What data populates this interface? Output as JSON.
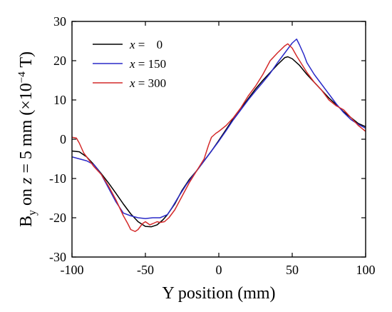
{
  "chart_data": {
    "type": "line",
    "title": "",
    "xlabel": "Y position (mm)",
    "ylabel": {
      "prefix": "B",
      "sub": "y",
      "mid": " on ",
      "var": "z",
      "rest": " = 5 mm (×10",
      "exp": "−4",
      "unit": " T)"
    },
    "xlim": [
      -100,
      100
    ],
    "ylim": [
      -30,
      30
    ],
    "xticks": [
      -100,
      -50,
      0,
      50,
      100
    ],
    "yticks": [
      -30,
      -20,
      -10,
      0,
      10,
      20,
      30
    ],
    "xtick_labels": [
      "-100",
      "-50",
      "0",
      "50",
      "100"
    ],
    "ytick_labels": [
      "-30",
      "-20",
      "-10",
      "0",
      "10",
      "20",
      "30"
    ],
    "grid": false,
    "legend_position": "top-left",
    "series": [
      {
        "name": "x = 0",
        "legend": {
          "var": "x",
          "eq": " = ",
          "val": "0"
        },
        "color": "#000000",
        "points": [
          [
            -100,
            -3
          ],
          [
            -95,
            -3.2
          ],
          [
            -90,
            -4.5
          ],
          [
            -85,
            -6.5
          ],
          [
            -80,
            -8.8
          ],
          [
            -75,
            -11.2
          ],
          [
            -70,
            -13.8
          ],
          [
            -65,
            -16.5
          ],
          [
            -60,
            -19.0
          ],
          [
            -55,
            -21.0
          ],
          [
            -50,
            -22.2
          ],
          [
            -46,
            -22.3
          ],
          [
            -42,
            -21.8
          ],
          [
            -38,
            -20.5
          ],
          [
            -35,
            -19.2
          ],
          [
            -30,
            -16.5
          ],
          [
            -25,
            -13.0
          ],
          [
            -20,
            -10.2
          ],
          [
            -15,
            -8.0
          ],
          [
            -10,
            -5.5
          ],
          [
            -5,
            -3.0
          ],
          [
            0,
            -0.3
          ],
          [
            5,
            2.5
          ],
          [
            10,
            5.3
          ],
          [
            15,
            7.8
          ],
          [
            20,
            10.3
          ],
          [
            25,
            12.8
          ],
          [
            30,
            15.0
          ],
          [
            35,
            17.0
          ],
          [
            40,
            19.0
          ],
          [
            45,
            20.8
          ],
          [
            47,
            21.0
          ],
          [
            50,
            20.5
          ],
          [
            55,
            18.8
          ],
          [
            60,
            16.5
          ],
          [
            65,
            14.5
          ],
          [
            70,
            12.5
          ],
          [
            75,
            10.5
          ],
          [
            80,
            8.8
          ],
          [
            85,
            7.0
          ],
          [
            90,
            5.5
          ],
          [
            95,
            4.0
          ],
          [
            100,
            3.2
          ]
        ]
      },
      {
        "name": "x = 150",
        "legend": {
          "var": "x",
          "eq": " = ",
          "val": "150"
        },
        "color": "#2a2ac8",
        "points": [
          [
            -100,
            -4.5
          ],
          [
            -95,
            -5.0
          ],
          [
            -90,
            -5.5
          ],
          [
            -85,
            -6.5
          ],
          [
            -80,
            -9.0
          ],
          [
            -75,
            -12.5
          ],
          [
            -70,
            -16.0
          ],
          [
            -65,
            -18.8
          ],
          [
            -60,
            -19.5
          ],
          [
            -55,
            -20.0
          ],
          [
            -50,
            -20.2
          ],
          [
            -45,
            -20.0
          ],
          [
            -40,
            -20.0
          ],
          [
            -35,
            -19.2
          ],
          [
            -32,
            -17.5
          ],
          [
            -28,
            -15.0
          ],
          [
            -22,
            -11.5
          ],
          [
            -15,
            -8.0
          ],
          [
            -10,
            -5.5
          ],
          [
            -5,
            -3.0
          ],
          [
            0,
            -0.5
          ],
          [
            5,
            2.2
          ],
          [
            10,
            5.0
          ],
          [
            15,
            7.5
          ],
          [
            20,
            10.0
          ],
          [
            25,
            12.3
          ],
          [
            30,
            14.5
          ],
          [
            35,
            16.8
          ],
          [
            40,
            19.5
          ],
          [
            45,
            22.0
          ],
          [
            48,
            23.5
          ],
          [
            50,
            24.5
          ],
          [
            53,
            25.5
          ],
          [
            55,
            24.0
          ],
          [
            58,
            21.5
          ],
          [
            60,
            19.5
          ],
          [
            65,
            16.5
          ],
          [
            70,
            14.0
          ],
          [
            75,
            11.5
          ],
          [
            80,
            9.0
          ],
          [
            85,
            6.8
          ],
          [
            90,
            5.0
          ],
          [
            95,
            3.8
          ],
          [
            100,
            2.8
          ]
        ]
      },
      {
        "name": "x = 300",
        "legend": {
          "var": "x",
          "eq": " = ",
          "val": "300"
        },
        "color": "#d42a2a",
        "points": [
          [
            -100,
            0.5
          ],
          [
            -97,
            0.3
          ],
          [
            -95,
            -1.0
          ],
          [
            -92,
            -3.5
          ],
          [
            -88,
            -5.5
          ],
          [
            -85,
            -7.0
          ],
          [
            -80,
            -9.0
          ],
          [
            -75,
            -12.0
          ],
          [
            -70,
            -15.5
          ],
          [
            -65,
            -19.5
          ],
          [
            -62,
            -21.5
          ],
          [
            -60,
            -23.0
          ],
          [
            -57,
            -23.5
          ],
          [
            -55,
            -23.0
          ],
          [
            -52,
            -21.5
          ],
          [
            -50,
            -21.0
          ],
          [
            -47,
            -21.8
          ],
          [
            -45,
            -21.5
          ],
          [
            -42,
            -21.0
          ],
          [
            -40,
            -21.2
          ],
          [
            -37,
            -21.0
          ],
          [
            -34,
            -20.0
          ],
          [
            -30,
            -18.0
          ],
          [
            -25,
            -14.5
          ],
          [
            -20,
            -11.0
          ],
          [
            -15,
            -8.0
          ],
          [
            -10,
            -5.0
          ],
          [
            -7,
            -1.5
          ],
          [
            -5,
            0.5
          ],
          [
            -2,
            1.5
          ],
          [
            0,
            2.0
          ],
          [
            5,
            3.5
          ],
          [
            10,
            5.5
          ],
          [
            15,
            8.0
          ],
          [
            20,
            11.0
          ],
          [
            25,
            13.5
          ],
          [
            30,
            16.5
          ],
          [
            35,
            20.0
          ],
          [
            40,
            22.0
          ],
          [
            45,
            23.8
          ],
          [
            47,
            24.3
          ],
          [
            50,
            23.2
          ],
          [
            53,
            21.2
          ],
          [
            55,
            20.0
          ],
          [
            60,
            17.0
          ],
          [
            65,
            14.5
          ],
          [
            70,
            12.5
          ],
          [
            75,
            10.0
          ],
          [
            80,
            8.5
          ],
          [
            85,
            7.5
          ],
          [
            90,
            5.5
          ],
          [
            95,
            3.5
          ],
          [
            100,
            2.0
          ]
        ]
      }
    ]
  }
}
